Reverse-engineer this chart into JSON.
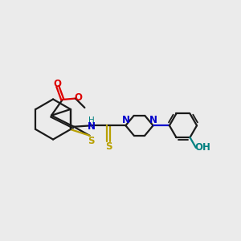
{
  "bg_color": "#ebebeb",
  "bond_color": "#1a1a1a",
  "sulfur_color": "#b8a000",
  "nitrogen_color": "#0000cc",
  "oxygen_color": "#dd0000",
  "oh_oxygen_color": "#008080",
  "h_color": "#008080",
  "line_width": 1.6,
  "figsize": [
    3.0,
    3.0
  ],
  "dpi": 100,
  "xlim": [
    0,
    10
  ],
  "ylim": [
    0,
    10
  ]
}
